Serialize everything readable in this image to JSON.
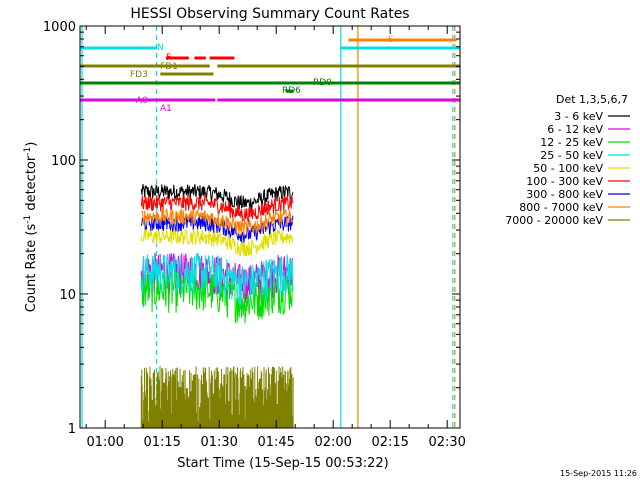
{
  "chart_data": {
    "type": "line",
    "title": "HESSI Observing Summary Count Rates",
    "xlabel": "Start Time (15-Sep-15 00:53:22)",
    "ylabel": "Count Rate (s",
    "ylabel_sup1": "-1",
    "ylabel_mid": " detector",
    "ylabel_sup2": "-1",
    "ylabel_end": ")",
    "yscale": "log",
    "ylim": [
      1,
      1000
    ],
    "xlim_minutes": [
      53.37,
      153.37
    ],
    "x_ticks": [
      {
        "label": "01:00",
        "minutes": 60
      },
      {
        "label": "01:15",
        "minutes": 75
      },
      {
        "label": "01:30",
        "minutes": 90
      },
      {
        "label": "01:45",
        "minutes": 105
      },
      {
        "label": "02:00",
        "minutes": 120
      },
      {
        "label": "02:15",
        "minutes": 135
      },
      {
        "label": "02:30",
        "minutes": 150
      }
    ],
    "y_ticks": [
      {
        "label": "1",
        "value": 1
      },
      {
        "label": "10",
        "value": 10
      },
      {
        "label": "100",
        "value": 100
      },
      {
        "label": "1000",
        "value": 1000
      }
    ],
    "legend_title": "Det 1,3,5,6,7",
    "legend_position": "right",
    "series": [
      {
        "name": "3 - 6 keV",
        "color": "#000000",
        "base": 58
      },
      {
        "name": "6 - 12 keV",
        "color": "#e000e0",
        "base": 15
      },
      {
        "name": "12 - 25 keV",
        "color": "#00e000",
        "base": 11
      },
      {
        "name": "25 - 50 keV",
        "color": "#00e0e0",
        "base": 15
      },
      {
        "name": "50 - 100 keV",
        "color": "#e0e000",
        "base": 27
      },
      {
        "name": "100 - 300 keV",
        "color": "#ff0000",
        "base": 48
      },
      {
        "name": "300 - 800 keV",
        "color": "#0000ff",
        "base": 34
      },
      {
        "name": "800 - 7000 keV",
        "color": "#ff8000",
        "base": 38
      },
      {
        "name": "7000 - 20000 keV",
        "color": "#808000",
        "base": 1.6
      }
    ],
    "observing_flags": [
      {
        "label": "N",
        "color": "#00e0e0",
        "segments": [
          [
            53.37,
            73.5
          ],
          [
            122,
            153.37
          ]
        ]
      },
      {
        "label": "S",
        "color": "#ff8000",
        "segments": [
          [
            124,
            152.5
          ]
        ]
      },
      {
        "label": "F",
        "color": "#ff0000",
        "segments": [
          [
            76,
            82
          ],
          [
            83.5,
            86.5
          ],
          [
            87.5,
            94
          ]
        ]
      },
      {
        "label": "FD1",
        "color": "#808000",
        "segments": [
          [
            53.37,
            87.5
          ],
          [
            89.5,
            153.37
          ]
        ]
      },
      {
        "label": "FD3",
        "color": "#808000",
        "segments": [
          [
            74.5,
            88.5
          ]
        ]
      },
      {
        "label": "RD0",
        "color": "#008000",
        "segments": [
          [
            53.37,
            153.37
          ]
        ]
      },
      {
        "label": "RD6",
        "color": "#008000",
        "segments": [
          [
            107.5,
            109.5
          ]
        ]
      },
      {
        "label": "A0",
        "color": "#e000e0",
        "segments": [
          [
            53.37,
            73.5
          ]
        ]
      },
      {
        "label": "A1",
        "color": "#e000e0",
        "segments": [
          [
            73.5,
            89
          ],
          [
            89.5,
            107.5
          ],
          [
            107.5,
            153.37
          ]
        ]
      }
    ],
    "vertical_lines": [
      {
        "minutes": 53.9,
        "color": "#00e0e0",
        "style": "solid"
      },
      {
        "minutes": 73.5,
        "color": "#00e0e0",
        "style": "dashed"
      },
      {
        "minutes": 122,
        "color": "#00e0e0",
        "style": "solid"
      },
      {
        "minutes": 126.5,
        "color": "#ff8000",
        "style": "solid"
      },
      {
        "minutes": 151.5,
        "color": "#00e0e0",
        "style": "dashed"
      },
      {
        "minutes": 152,
        "color": "#ff8000",
        "style": "dashed"
      }
    ],
    "data_window_minutes": [
      69.5,
      109.5
    ],
    "timestamp": "15-Sep-2015 11:26"
  }
}
